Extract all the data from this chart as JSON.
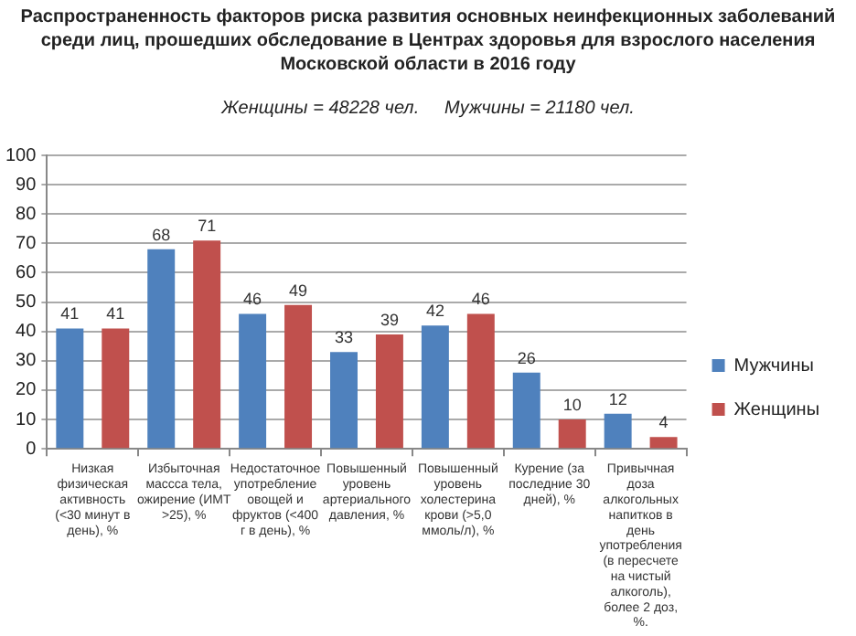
{
  "chart_data": {
    "type": "bar",
    "title": "Распространенность факторов риска развития основных неинфекционных заболеваний среди лиц, прошедших обследование в Центрах здоровья для взрослого населения Московской области в 2016 году",
    "subtitle": "Женщины = 48228 чел.     Мужчины = 21180 чел.",
    "categories": [
      "Низкая физическая активность (<30 минут в день), %",
      "Избыточная массса тела, ожирение (ИМТ >25), %",
      "Недостаточное употребление овощей и фруктов (<400 г в день), %",
      "Повышенный уровень артериального давления, %",
      "Повышенный уровень холестерина крови (>5,0 ммоль/л), %",
      "Курение (за последние 30 дней), %",
      "Привычная доза алкогольных напитков в день употребления (в пересчете на чистый алкоголь), более 2 доз, %."
    ],
    "series": [
      {
        "name": "Мужчины",
        "color": "#4f81bd",
        "values": [
          41,
          68,
          46,
          33,
          42,
          26,
          12
        ]
      },
      {
        "name": "Женщины",
        "color": "#c0504d",
        "values": [
          41,
          71,
          49,
          39,
          46,
          10,
          4
        ]
      }
    ],
    "ylim": [
      0,
      100
    ],
    "yticks": [
      0,
      10,
      20,
      30,
      40,
      50,
      60,
      70,
      80,
      90,
      100
    ],
    "grid": "y",
    "legend": "right",
    "data_labels": true
  }
}
